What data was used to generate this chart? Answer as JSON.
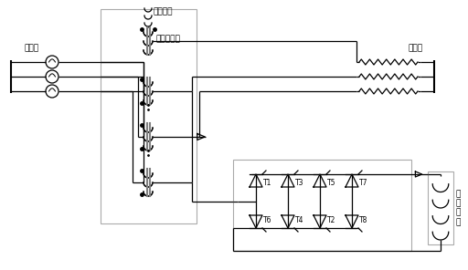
{
  "bg_color": "#ffffff",
  "line_color": "#000000",
  "gray_color": "#888888",
  "labels": {
    "power": "电源端",
    "load": "负载端",
    "series_r": "串联电抗",
    "series_t": "串联变压器",
    "dc_label": "直\n流\n电\n感"
  },
  "thyristors_top": [
    "T1",
    "T3",
    "T5",
    "T7"
  ],
  "thyristors_bot": [
    "T6",
    "T4",
    "T2",
    "T8"
  ],
  "figsize": [
    5.12,
    2.96
  ],
  "dpi": 100
}
